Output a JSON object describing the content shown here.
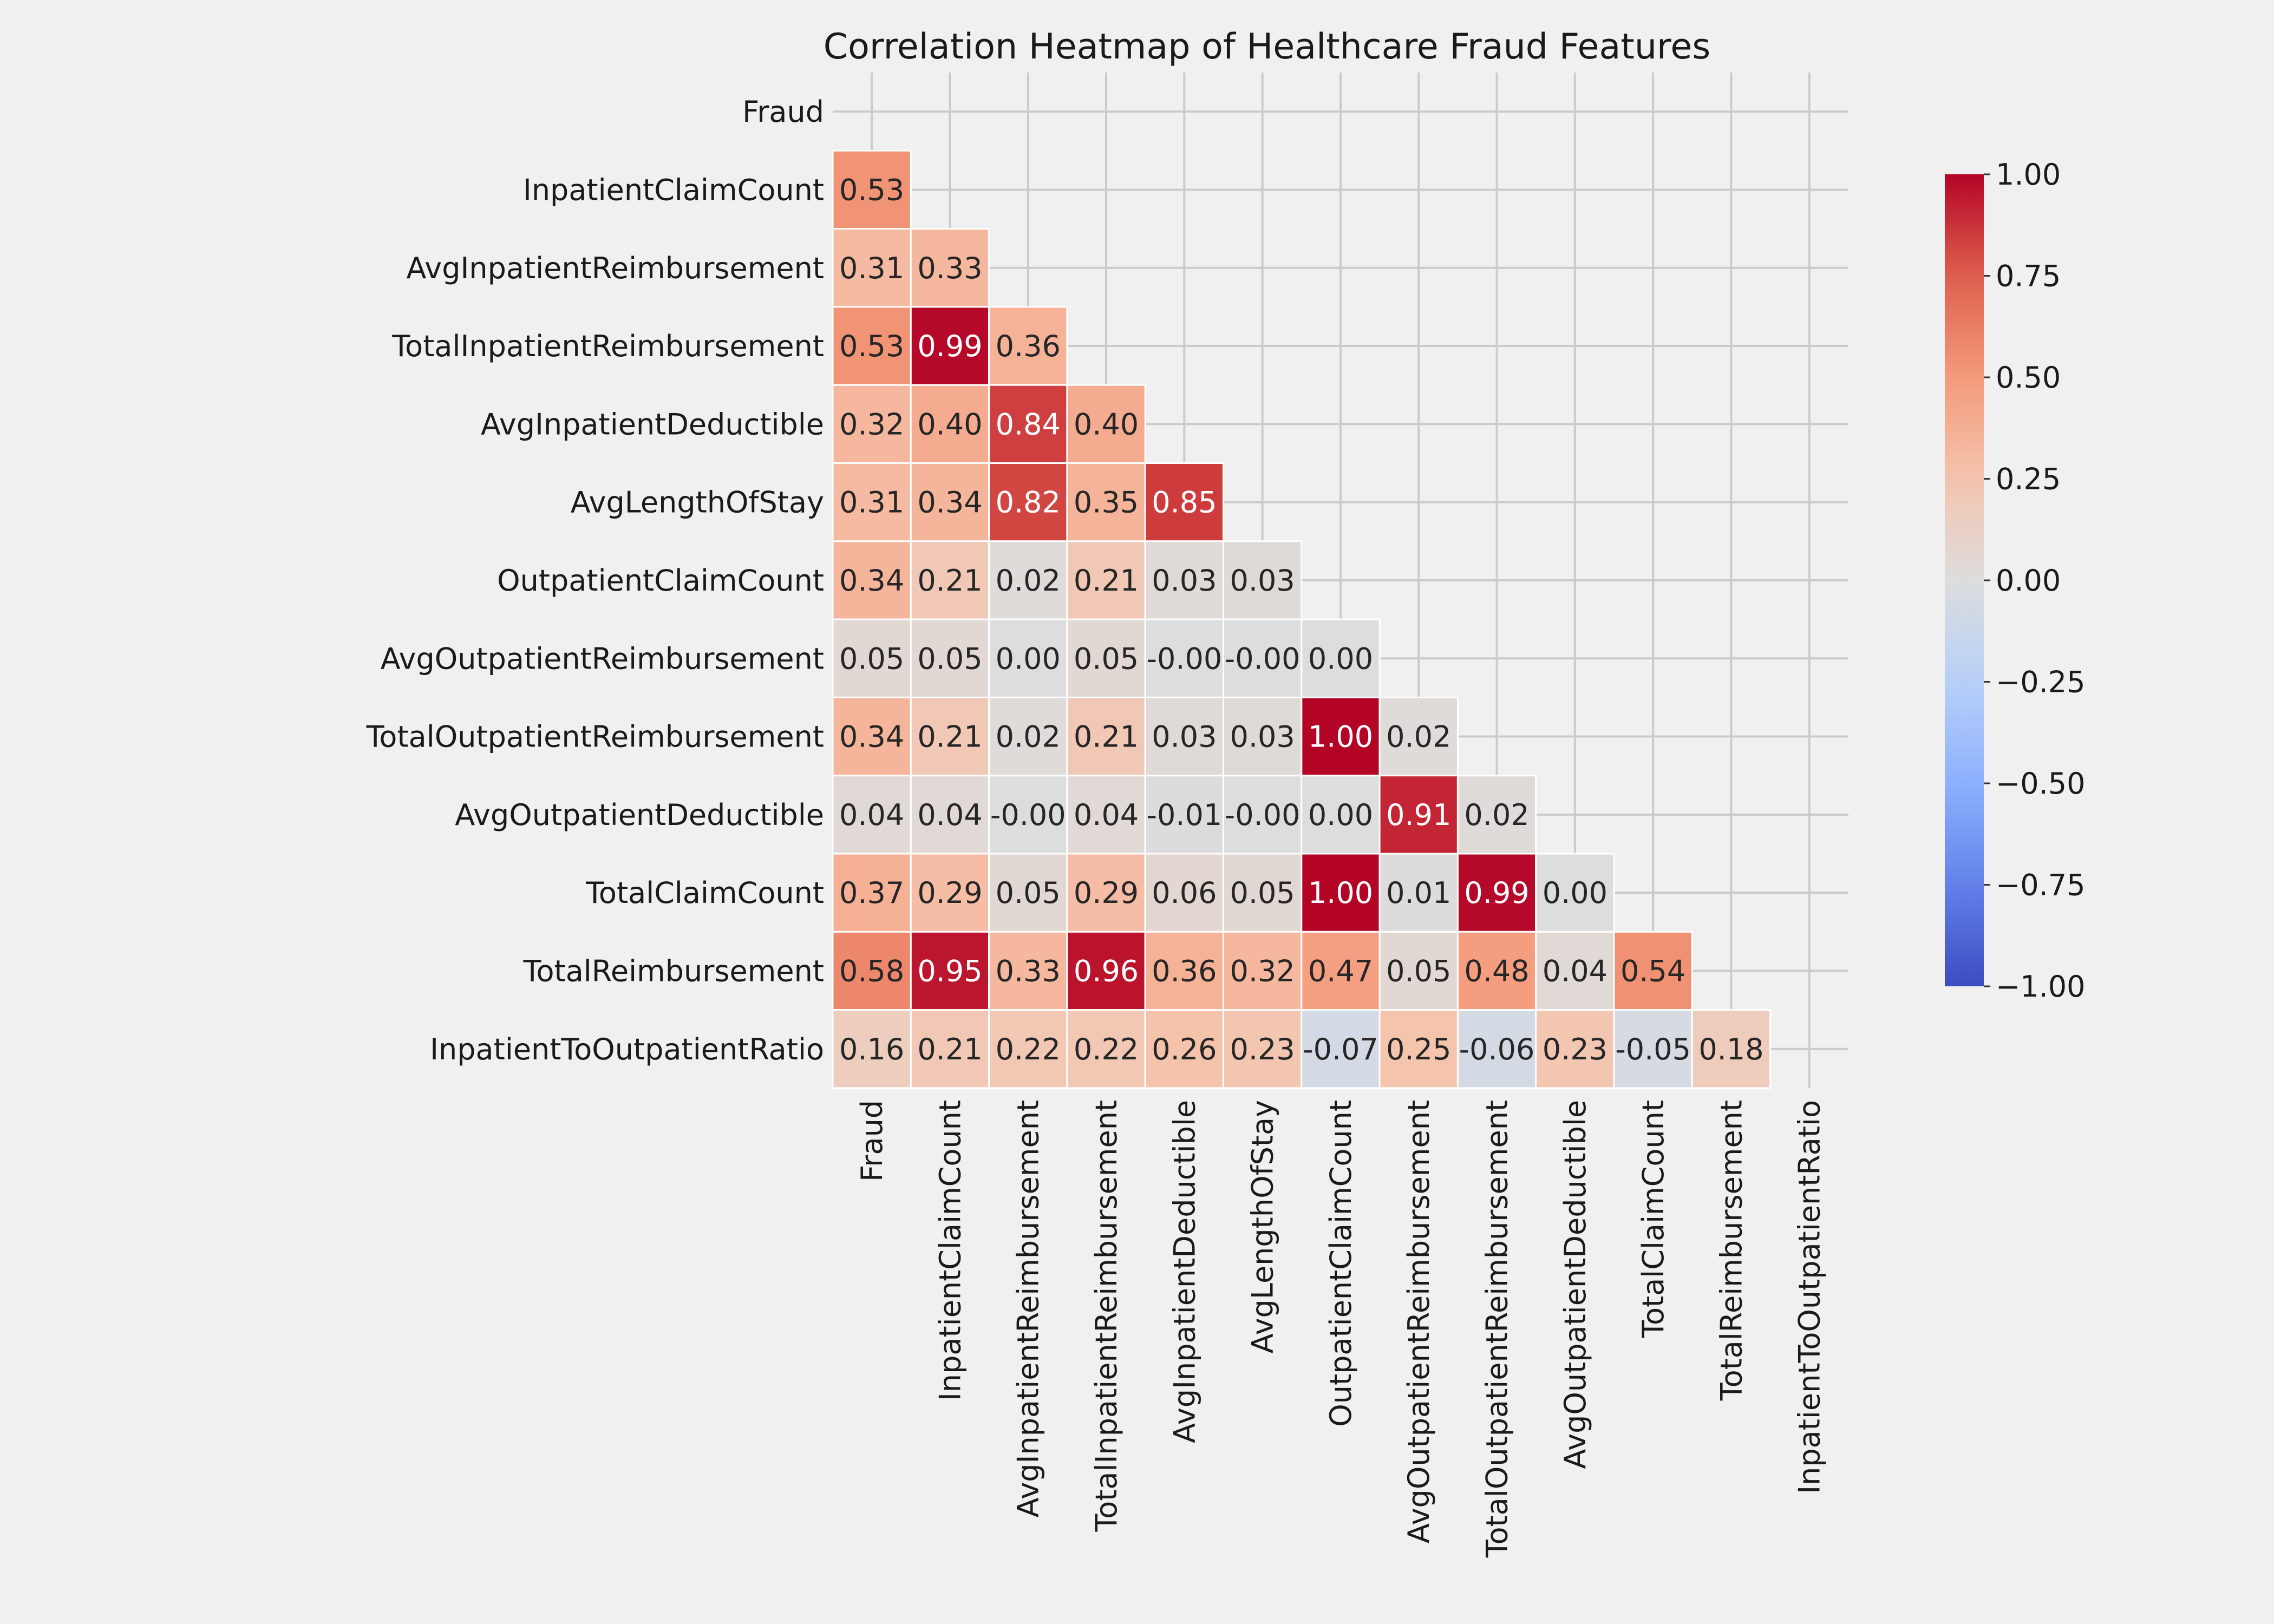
{
  "chart_data": {
    "type": "heatmap",
    "title": "Correlation Heatmap of Healthcare Fraud Features",
    "xlabel": "",
    "ylabel": "",
    "mask": "upper triangle incl. diagonal",
    "grid": true,
    "colormap": "coolwarm",
    "value_range": [
      -1,
      1
    ],
    "colorbar": {
      "placement": "right",
      "ticks": [
        1.0,
        0.75,
        0.5,
        0.25,
        0.0,
        -0.25,
        -0.5,
        -0.75,
        -1.0
      ],
      "tick_labels": [
        "1.00",
        "0.75",
        "0.50",
        "0.25",
        "0.00",
        "−0.25",
        "−0.50",
        "−0.75",
        "−1.00"
      ]
    },
    "labels": [
      "Fraud",
      "InpatientClaimCount",
      "AvgInpatientReimbursement",
      "TotalInpatientReimbursement",
      "AvgInpatientDeductible",
      "AvgLengthOfStay",
      "OutpatientClaimCount",
      "AvgOutpatientReimbursement",
      "TotalOutpatientReimbursement",
      "AvgOutpatientDeductible",
      "TotalClaimCount",
      "TotalReimbursement",
      "InpatientToOutpatientRatio"
    ],
    "values": [
      [],
      [
        0.53
      ],
      [
        0.31,
        0.33
      ],
      [
        0.53,
        0.99,
        0.36
      ],
      [
        0.32,
        0.4,
        0.84,
        0.4
      ],
      [
        0.31,
        0.34,
        0.82,
        0.35,
        0.85
      ],
      [
        0.34,
        0.21,
        0.02,
        0.21,
        0.03,
        0.03
      ],
      [
        0.05,
        0.05,
        0.0,
        0.05,
        -0.004,
        -0.004,
        0.0
      ],
      [
        0.34,
        0.21,
        0.02,
        0.21,
        0.03,
        0.03,
        1.0,
        0.02
      ],
      [
        0.04,
        0.04,
        -0.004,
        0.04,
        -0.01,
        -0.004,
        0.0,
        0.91,
        0.02
      ],
      [
        0.37,
        0.29,
        0.05,
        0.29,
        0.06,
        0.05,
        1.0,
        0.01,
        0.99,
        0.0
      ],
      [
        0.58,
        0.95,
        0.33,
        0.96,
        0.36,
        0.32,
        0.47,
        0.05,
        0.48,
        0.04,
        0.54
      ],
      [
        0.16,
        0.21,
        0.22,
        0.22,
        0.26,
        0.23,
        -0.07,
        0.25,
        -0.06,
        0.23,
        -0.05,
        0.18
      ]
    ],
    "cell_labels": [
      [],
      [
        "0.53"
      ],
      [
        "0.31",
        "0.33"
      ],
      [
        "0.53",
        "0.99",
        "0.36"
      ],
      [
        "0.32",
        "0.40",
        "0.84",
        "0.40"
      ],
      [
        "0.31",
        "0.34",
        "0.82",
        "0.35",
        "0.85"
      ],
      [
        "0.34",
        "0.21",
        "0.02",
        "0.21",
        "0.03",
        "0.03"
      ],
      [
        "0.05",
        "0.05",
        "0.00",
        "0.05",
        "-0.00",
        "-0.00",
        "0.00"
      ],
      [
        "0.34",
        "0.21",
        "0.02",
        "0.21",
        "0.03",
        "0.03",
        "1.00",
        "0.02"
      ],
      [
        "0.04",
        "0.04",
        "-0.00",
        "0.04",
        "-0.01",
        "-0.00",
        "0.00",
        "0.91",
        "0.02"
      ],
      [
        "0.37",
        "0.29",
        "0.05",
        "0.29",
        "0.06",
        "0.05",
        "1.00",
        "0.01",
        "0.99",
        "0.00"
      ],
      [
        "0.58",
        "0.95",
        "0.33",
        "0.96",
        "0.36",
        "0.32",
        "0.47",
        "0.05",
        "0.48",
        "0.04",
        "0.54"
      ],
      [
        "0.16",
        "0.21",
        "0.22",
        "0.22",
        "0.26",
        "0.23",
        "-0.07",
        "0.25",
        "-0.06",
        "0.23",
        "-0.05",
        "0.18"
      ]
    ]
  }
}
